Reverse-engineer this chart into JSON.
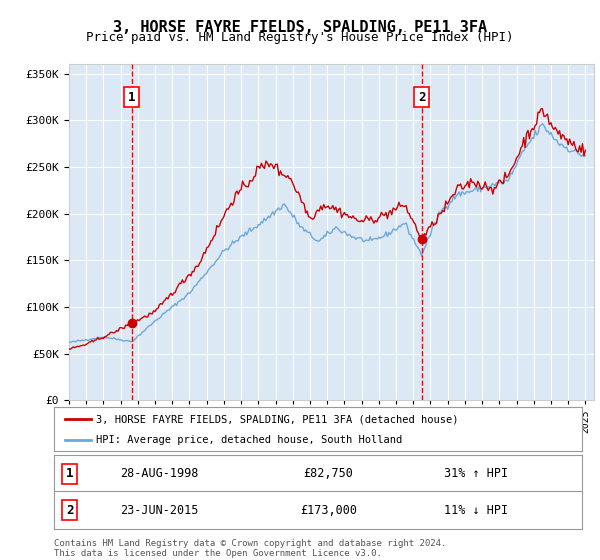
{
  "title": "3, HORSE FAYRE FIELDS, SPALDING, PE11 3FA",
  "subtitle": "Price paid vs. HM Land Registry's House Price Index (HPI)",
  "legend_line1": "3, HORSE FAYRE FIELDS, SPALDING, PE11 3FA (detached house)",
  "legend_line2": "HPI: Average price, detached house, South Holland",
  "transaction1_date": "28-AUG-1998",
  "transaction1_price": "£82,750",
  "transaction1_hpi": "31% ↑ HPI",
  "transaction1_year": 1998.65,
  "transaction1_value": 82750,
  "transaction2_date": "23-JUN-2015",
  "transaction2_price": "£173,000",
  "transaction2_hpi": "11% ↓ HPI",
  "transaction2_year": 2015.48,
  "transaction2_value": 173000,
  "footer_line1": "Contains HM Land Registry data © Crown copyright and database right 2024.",
  "footer_line2": "This data is licensed under the Open Government Licence v3.0.",
  "hpi_color": "#6fa8d6",
  "price_color": "#cc0000",
  "marker_color": "#cc0000",
  "plot_bg_color": "#dce9f5",
  "ylim": [
    0,
    360000
  ],
  "xlim_start": 1995.0,
  "xlim_end": 2025.5
}
